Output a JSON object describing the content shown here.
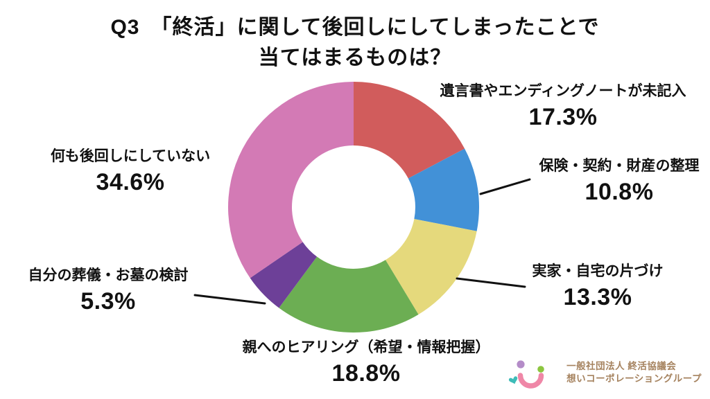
{
  "title": {
    "line1": "Q3　「終活」に関して後回しにしてしまったことで",
    "line2": "当てはまるものは？"
  },
  "chart_data": {
    "type": "pie",
    "donut": true,
    "title": "Q3 「終活」に関して後回しにしてしまったことで当てはまるものは？",
    "start_angle_deg": 0,
    "direction": "clockwise",
    "center": [
      510,
      299
    ],
    "outer_radius": 181,
    "inner_radius": 89,
    "segments": [
      {
        "label": "遺言書やエンディングノートが未記入",
        "value": 17.3,
        "pct": "17.3%",
        "color": "#d15c5c"
      },
      {
        "label": "保険・契約・財産の整理",
        "value": 10.8,
        "pct": "10.8%",
        "color": "#4291d7"
      },
      {
        "label": "実家・自宅の片づけ",
        "value": 13.3,
        "pct": "13.3%",
        "color": "#e5d97c"
      },
      {
        "label": "親へのヒアリング（希望・情報把握）",
        "value": 18.8,
        "pct": "18.8%",
        "color": "#6cae53"
      },
      {
        "label": "自分の葬儀・お墓の検討",
        "value": 5.3,
        "pct": "5.3%",
        "color": "#6d4098"
      },
      {
        "label": "何も後回しにしていない",
        "value": 34.6,
        "pct": "34.6%",
        "color": "#d37ab5"
      }
    ]
  },
  "leader_line_color": "#111111",
  "logo": {
    "line1": "一般社団法人 終活協議会",
    "line2": "想いコーポレーショングループ",
    "text_color": "#a5825e",
    "colors": {
      "dot_purple": "#b48cc8",
      "dot_green": "#8cc63f",
      "heart_teal": "#3dbcb8",
      "smile_pink": "#ef87a7"
    }
  }
}
